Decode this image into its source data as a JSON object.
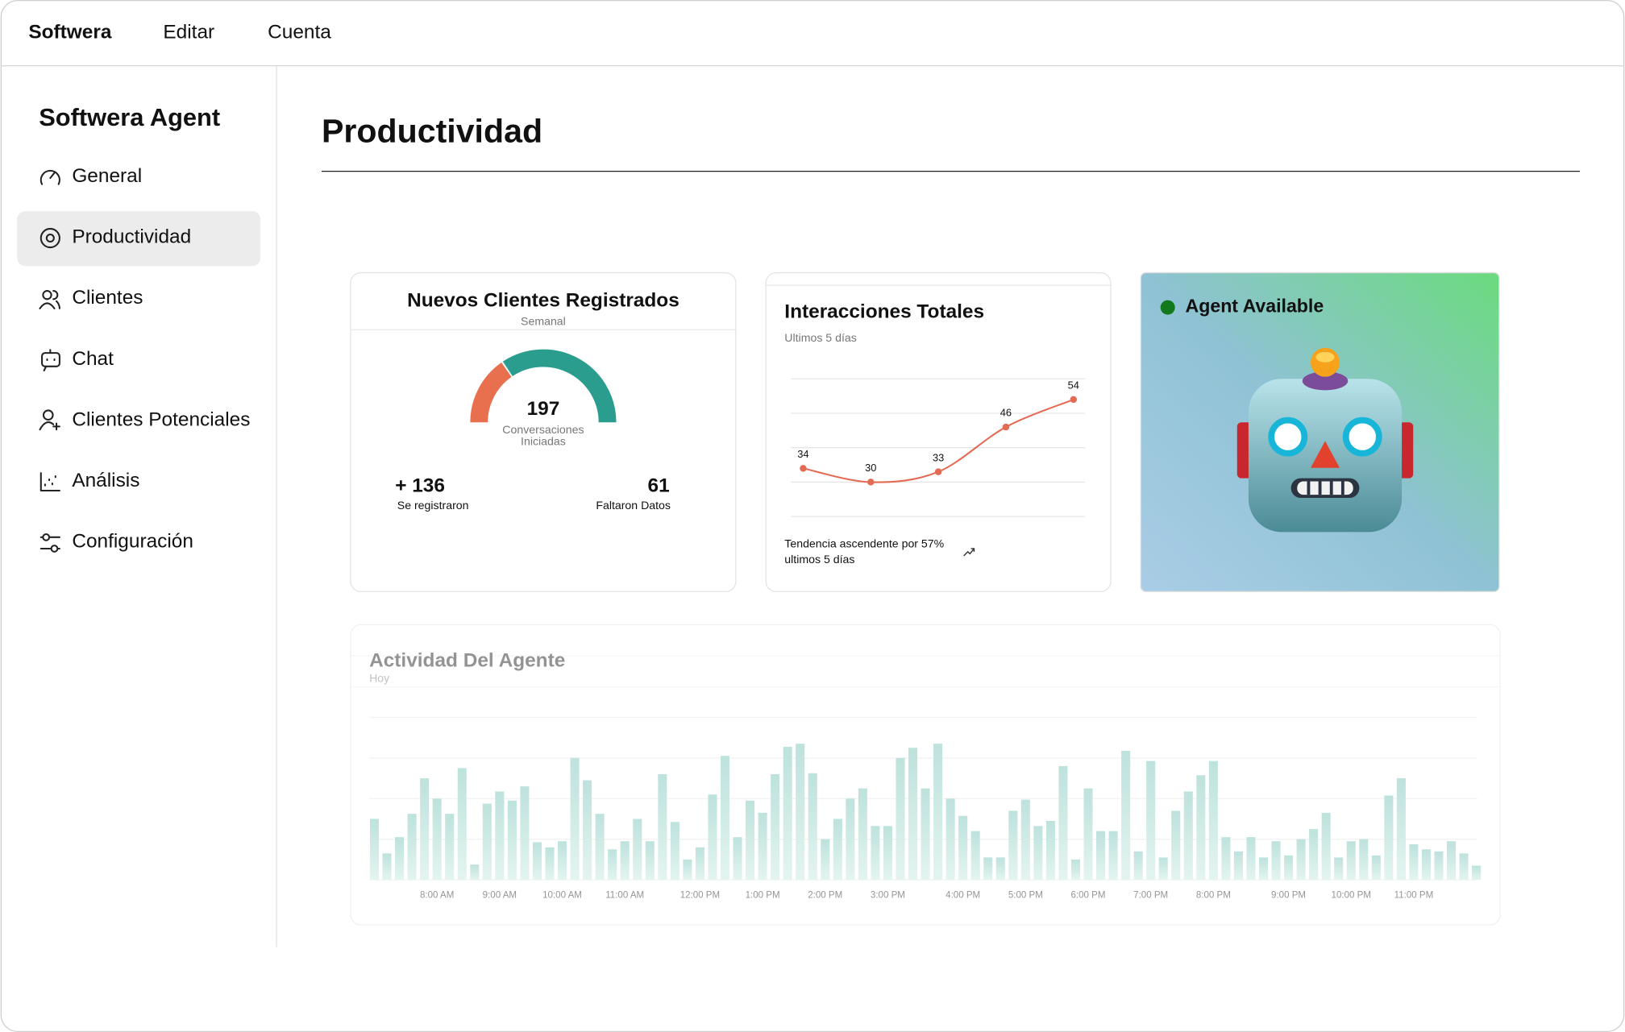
{
  "menu": [
    "Softwera",
    "Editar",
    "Cuenta"
  ],
  "sidebar": {
    "title": "Softwera Agent",
    "items": [
      "General",
      "Productividad",
      "Clientes",
      "Chat",
      "Clientes Potenciales",
      "Análisis",
      "Configuración"
    ]
  },
  "page_title": "Productividad",
  "status_card": {
    "label": "Agent Available"
  },
  "chart_data": [
    {
      "type": "gauge",
      "title": "Nuevos Clientes Registrados",
      "subtitle": "Semanal",
      "value": 197,
      "value_label_lines": [
        "Conversaciones",
        "Iniciadas"
      ],
      "segments": [
        {
          "name": "Faltaron Datos",
          "value": 61,
          "color": "#e8704f"
        },
        {
          "name": "Se registraron",
          "value": 136,
          "value_label": "+ 136",
          "color": "#2a9d8f"
        }
      ]
    },
    {
      "type": "line",
      "title": "Interacciones Totales",
      "subtitle": "Ultimos 5 días",
      "values": [
        34,
        30,
        33,
        46,
        54
      ],
      "color": "#e46b53",
      "ylim": [
        20,
        60
      ],
      "yticks": [
        20,
        30,
        40,
        50,
        60
      ],
      "grid": true,
      "footer_lines": [
        "Tendencia ascendente por 57%",
        "ultimos 5 días"
      ]
    },
    {
      "type": "bar",
      "title": "Actividad Del Agente",
      "subtitle": "Hoy",
      "color": "#7cc7bb",
      "ylim": [
        0,
        160
      ],
      "yticks": [
        0,
        40,
        80,
        120,
        160
      ],
      "grid": true,
      "categories": [
        null,
        null,
        null,
        null,
        null,
        "8:00 AM",
        null,
        null,
        null,
        null,
        "9:00 AM",
        null,
        null,
        null,
        null,
        "10:00 AM",
        null,
        null,
        null,
        null,
        "11:00 AM",
        null,
        null,
        null,
        null,
        null,
        "12:00 PM",
        null,
        null,
        null,
        null,
        "1:00 PM",
        null,
        null,
        null,
        null,
        "2:00 PM",
        null,
        null,
        null,
        null,
        "3:00 PM",
        null,
        null,
        null,
        null,
        null,
        "4:00 PM",
        null,
        null,
        null,
        null,
        "5:00 PM",
        null,
        null,
        null,
        null,
        "6:00 PM",
        null,
        null,
        null,
        null,
        "7:00 PM",
        null,
        null,
        null,
        null,
        "8:00 PM",
        null,
        null,
        null,
        null,
        null,
        "9:00 PM",
        null,
        null,
        null,
        null,
        "10:00 PM",
        null,
        null,
        null,
        null,
        "11:00 PM",
        null,
        null,
        null,
        null,
        null
      ],
      "values": [
        60,
        26,
        42,
        65,
        100,
        80,
        65,
        110,
        15,
        75,
        87,
        78,
        92,
        37,
        32,
        38,
        120,
        98,
        65,
        30,
        38,
        60,
        38,
        104,
        57,
        20,
        32,
        84,
        122,
        42,
        78,
        66,
        104,
        131,
        134,
        105,
        40,
        60,
        80,
        90,
        53,
        53,
        120,
        130,
        90,
        134,
        80,
        63,
        48,
        22,
        22,
        68,
        79,
        53,
        58,
        112,
        20,
        90,
        48,
        48,
        127,
        28,
        117,
        22,
        68,
        87,
        103,
        117,
        42,
        28,
        42,
        22,
        38,
        24,
        40,
        50,
        66,
        22,
        38,
        40,
        24,
        83,
        100,
        35,
        30,
        28,
        38,
        26,
        14
      ]
    }
  ]
}
